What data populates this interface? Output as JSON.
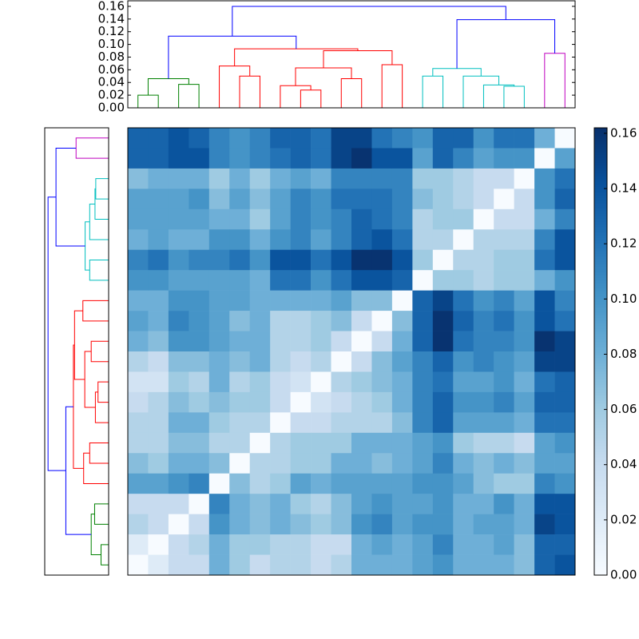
{
  "chart_data": {
    "type": "heatmap",
    "colormap": "Blues",
    "clim": [
      0,
      0.162
    ],
    "cticks": [
      {
        "value": 0,
        "label": "0.00"
      },
      {
        "value": 0.02,
        "label": "0.02"
      },
      {
        "value": 0.04,
        "label": "0.04"
      },
      {
        "value": 0.06,
        "label": "0.06"
      },
      {
        "value": 0.08,
        "label": "0.08"
      },
      {
        "value": 0.1,
        "label": "0.10"
      },
      {
        "value": 0.12,
        "label": "0.12"
      },
      {
        "value": 0.14,
        "label": "0.14"
      },
      {
        "value": 0.16,
        "label": "0.16"
      }
    ],
    "values": [
      [
        0.13,
        0.13,
        0.14,
        0.13,
        0.11,
        0.1,
        0.11,
        0.13,
        0.13,
        0.12,
        0.15,
        0.15,
        0.12,
        0.11,
        0.1,
        0.13,
        0.13,
        0.1,
        0.12,
        0.12,
        0.08,
        0
      ],
      [
        0.13,
        0.13,
        0.14,
        0.14,
        0.11,
        0.1,
        0.11,
        0.12,
        0.13,
        0.12,
        0.15,
        0.16,
        0.14,
        0.14,
        0.09,
        0.13,
        0.11,
        0.09,
        0.1,
        0.1,
        0,
        0.09
      ],
      [
        0.07,
        0.08,
        0.08,
        0.08,
        0.06,
        0.08,
        0.06,
        0.08,
        0.09,
        0.08,
        0.11,
        0.11,
        0.11,
        0.11,
        0.06,
        0.06,
        0.05,
        0.04,
        0.04,
        0,
        0.1,
        0.12
      ],
      [
        0.09,
        0.09,
        0.09,
        0.1,
        0.07,
        0.09,
        0.07,
        0.09,
        0.11,
        0.1,
        0.12,
        0.12,
        0.12,
        0.11,
        0.07,
        0.06,
        0.05,
        0.04,
        0,
        0.04,
        0.1,
        0.13
      ],
      [
        0.09,
        0.09,
        0.09,
        0.09,
        0.08,
        0.08,
        0.06,
        0.09,
        0.11,
        0.1,
        0.11,
        0.13,
        0.12,
        0.11,
        0.05,
        0.06,
        0.06,
        0,
        0.04,
        0.04,
        0.08,
        0.11
      ],
      [
        0.08,
        0.09,
        0.08,
        0.08,
        0.1,
        0.1,
        0.08,
        0.1,
        0.11,
        0.09,
        0.11,
        0.13,
        0.14,
        0.12,
        0.05,
        0.05,
        0,
        0.05,
        0.05,
        0.05,
        0.11,
        0.14
      ],
      [
        0.11,
        0.12,
        0.1,
        0.11,
        0.11,
        0.12,
        0.1,
        0.14,
        0.14,
        0.12,
        0.14,
        0.16,
        0.16,
        0.14,
        0.06,
        0,
        0.05,
        0.05,
        0.06,
        0.06,
        0.12,
        0.14
      ],
      [
        0.1,
        0.1,
        0.09,
        0.09,
        0.09,
        0.09,
        0.08,
        0.12,
        0.12,
        0.1,
        0.12,
        0.14,
        0.14,
        0.13,
        0,
        0.06,
        0.06,
        0.05,
        0.06,
        0.06,
        0.08,
        0.1
      ],
      [
        0.08,
        0.08,
        0.1,
        0.1,
        0.09,
        0.09,
        0.08,
        0.08,
        0.08,
        0.08,
        0.09,
        0.07,
        0.07,
        0,
        0.13,
        0.15,
        0.12,
        0.1,
        0.11,
        0.09,
        0.14,
        0.11
      ],
      [
        0.09,
        0.08,
        0.11,
        0.1,
        0.09,
        0.07,
        0.08,
        0.05,
        0.05,
        0.06,
        0.07,
        0.04,
        0,
        0.07,
        0.13,
        0.16,
        0.13,
        0.11,
        0.12,
        0.1,
        0.14,
        0.12
      ],
      [
        0.08,
        0.07,
        0.1,
        0.1,
        0.09,
        0.08,
        0.08,
        0.05,
        0.05,
        0.06,
        0.04,
        0,
        0.04,
        0.08,
        0.13,
        0.16,
        0.12,
        0.11,
        0.11,
        0.1,
        0.16,
        0.15
      ],
      [
        0.05,
        0.04,
        0.07,
        0.07,
        0.08,
        0.07,
        0.08,
        0.05,
        0.04,
        0.05,
        0,
        0.04,
        0.07,
        0.09,
        0.11,
        0.13,
        0.1,
        0.11,
        0.1,
        0.09,
        0.15,
        0.15
      ],
      [
        0.03,
        0.03,
        0.06,
        0.05,
        0.08,
        0.05,
        0.06,
        0.04,
        0.03,
        0,
        0.05,
        0.06,
        0.07,
        0.08,
        0.11,
        0.12,
        0.09,
        0.09,
        0.1,
        0.08,
        0.12,
        0.13
      ],
      [
        0.04,
        0.05,
        0.07,
        0.06,
        0.07,
        0.06,
        0.06,
        0.04,
        0,
        0.03,
        0.04,
        0.05,
        0.06,
        0.08,
        0.11,
        0.13,
        0.1,
        0.1,
        0.11,
        0.09,
        0.13,
        0.13
      ],
      [
        0.05,
        0.05,
        0.08,
        0.08,
        0.06,
        0.05,
        0.05,
        0,
        0.04,
        0.04,
        0.05,
        0.05,
        0.05,
        0.07,
        0.11,
        0.13,
        0.09,
        0.09,
        0.09,
        0.08,
        0.12,
        0.12
      ],
      [
        0.05,
        0.05,
        0.07,
        0.07,
        0.05,
        0.05,
        0,
        0.05,
        0.06,
        0.06,
        0.06,
        0.08,
        0.08,
        0.08,
        0.09,
        0.1,
        0.06,
        0.05,
        0.05,
        0.04,
        0.09,
        0.1
      ],
      [
        0.07,
        0.06,
        0.08,
        0.08,
        0.07,
        0,
        0.05,
        0.05,
        0.06,
        0.06,
        0.08,
        0.08,
        0.07,
        0.08,
        0.09,
        0.11,
        0.08,
        0.07,
        0.08,
        0.07,
        0.09,
        0.09
      ],
      [
        0.09,
        0.09,
        0.1,
        0.11,
        0,
        0.07,
        0.05,
        0.06,
        0.09,
        0.08,
        0.09,
        0.09,
        0.09,
        0.09,
        0.1,
        0.1,
        0.09,
        0.07,
        0.06,
        0.06,
        0.11,
        0.1
      ],
      [
        0.04,
        0.04,
        0.04,
        0,
        0.11,
        0.08,
        0.07,
        0.08,
        0.06,
        0.05,
        0.07,
        0.09,
        0.1,
        0.09,
        0.09,
        0.1,
        0.08,
        0.08,
        0.1,
        0.08,
        0.14,
        0.14
      ],
      [
        0.05,
        0.04,
        0,
        0.04,
        0.1,
        0.08,
        0.07,
        0.08,
        0.07,
        0.06,
        0.07,
        0.1,
        0.11,
        0.09,
        0.1,
        0.1,
        0.08,
        0.09,
        0.09,
        0.08,
        0.15,
        0.14
      ],
      [
        0.02,
        0,
        0.04,
        0.05,
        0.08,
        0.06,
        0.06,
        0.05,
        0.05,
        0.04,
        0.04,
        0.08,
        0.09,
        0.08,
        0.09,
        0.11,
        0.08,
        0.08,
        0.09,
        0.07,
        0.13,
        0.13
      ],
      [
        0,
        0.02,
        0.04,
        0.04,
        0.08,
        0.06,
        0.04,
        0.05,
        0.05,
        0.04,
        0.05,
        0.08,
        0.08,
        0.08,
        0.09,
        0.1,
        0.08,
        0.08,
        0.08,
        0.07,
        0.13,
        0.14
      ]
    ],
    "dendrogram": {
      "leaves": 22,
      "ylim": [
        0,
        0.16875
      ],
      "yticks": [
        {
          "value": 0,
          "label": "0.00"
        },
        {
          "value": 0.02,
          "label": "0.02"
        },
        {
          "value": 0.04,
          "label": "0.04"
        },
        {
          "value": 0.06,
          "label": "0.06"
        },
        {
          "value": 0.08,
          "label": "0.08"
        },
        {
          "value": 0.1,
          "label": "0.10"
        },
        {
          "value": 0.12,
          "label": "0.12"
        },
        {
          "value": 0.14,
          "label": "0.14"
        },
        {
          "value": 0.16,
          "label": "0.16"
        }
      ],
      "links": [
        {
          "children": [
            0,
            1
          ],
          "height": 0.02,
          "color": "#008000"
        },
        {
          "children": [
            2,
            3
          ],
          "height": 0.037,
          "color": "#008000"
        },
        {
          "children": [
            22,
            23
          ],
          "height": 0.046,
          "color": "#008000"
        },
        {
          "children": [
            5,
            6
          ],
          "height": 0.05,
          "color": "#ff0000"
        },
        {
          "children": [
            4,
            25
          ],
          "height": 0.066,
          "color": "#ff0000"
        },
        {
          "children": [
            8,
            9
          ],
          "height": 0.028,
          "color": "#ff0000"
        },
        {
          "children": [
            7,
            27
          ],
          "height": 0.035,
          "color": "#ff0000"
        },
        {
          "children": [
            10,
            11
          ],
          "height": 0.046,
          "color": "#ff0000"
        },
        {
          "children": [
            28,
            29
          ],
          "height": 0.063,
          "color": "#ff0000"
        },
        {
          "children": [
            12,
            13
          ],
          "height": 0.068,
          "color": "#ff0000"
        },
        {
          "children": [
            30,
            31
          ],
          "height": 0.09,
          "color": "#ff0000"
        },
        {
          "children": [
            26,
            32
          ],
          "height": 0.093,
          "color": "#ff0000"
        },
        {
          "children": [
            24,
            33
          ],
          "height": 0.113,
          "color": "#0000ff"
        },
        {
          "children": [
            14,
            15
          ],
          "height": 0.05,
          "color": "#00bfbf"
        },
        {
          "children": [
            18,
            19
          ],
          "height": 0.034,
          "color": "#00bfbf"
        },
        {
          "children": [
            17,
            36
          ],
          "height": 0.036,
          "color": "#00bfbf"
        },
        {
          "children": [
            16,
            37
          ],
          "height": 0.05,
          "color": "#00bfbf"
        },
        {
          "children": [
            35,
            38
          ],
          "height": 0.062,
          "color": "#00bfbf"
        },
        {
          "children": [
            20,
            21
          ],
          "height": 0.086,
          "color": "#bf00bf"
        },
        {
          "children": [
            39,
            40
          ],
          "height": 0.139,
          "color": "#0000ff"
        },
        {
          "children": [
            34,
            41
          ],
          "height": 0.16,
          "color": "#0000ff"
        }
      ]
    }
  }
}
